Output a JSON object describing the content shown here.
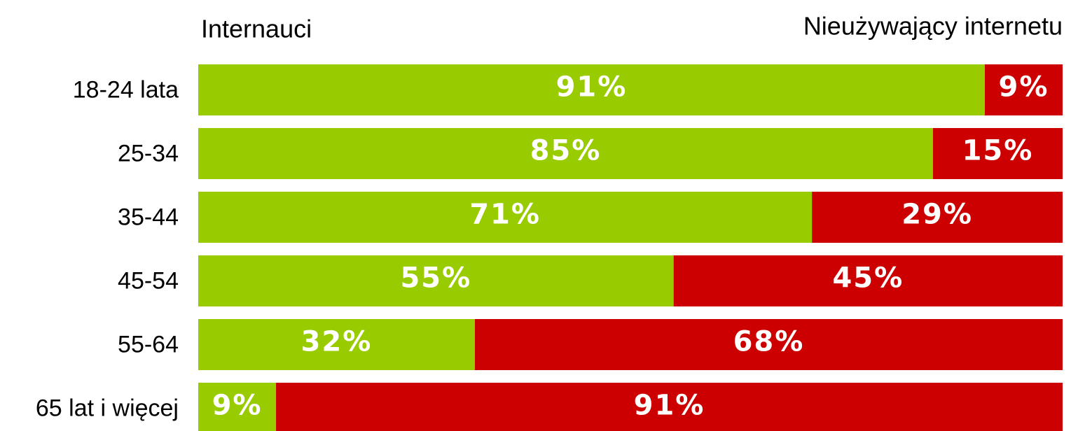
{
  "chart_data": {
    "type": "stacked-bar-horizontal",
    "categories": [
      "18-24 lata",
      "25-34",
      "35-44",
      "45-54",
      "55-64",
      "65 lat i więcej"
    ],
    "series": [
      {
        "name": "Internauci",
        "color": "#99cc00",
        "values": [
          91,
          85,
          71,
          55,
          32,
          9
        ],
        "value_labels": [
          "91%",
          "85%",
          "71%",
          "55%",
          "32%",
          "9%"
        ]
      },
      {
        "name": "Nieużywający internetu",
        "color": "#cc0000",
        "values": [
          9,
          15,
          29,
          45,
          68,
          91
        ],
        "value_labels": [
          "9%",
          "15%",
          "29%",
          "45%",
          "68%",
          "91%"
        ]
      }
    ]
  }
}
